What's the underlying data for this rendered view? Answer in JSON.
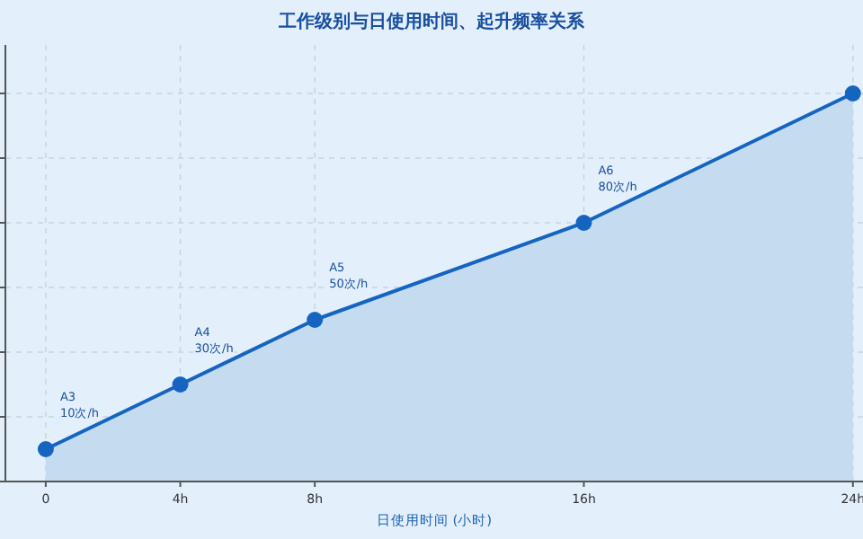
{
  "chart_data": {
    "type": "area",
    "title": "工作级别与日使用时间、起升频率关系",
    "xlabel": "日使用时间 (小时)",
    "x": [
      0,
      4,
      8,
      16,
      24
    ],
    "values": [
      10,
      30,
      50,
      80,
      120
    ],
    "value_labels": [
      "A3\n10次/h",
      "A4\n30次/h",
      "A5\n50次/h",
      "A6\n80次/h",
      null
    ],
    "color": "#1565c0",
    "xlim": [
      -1.2,
      24.3
    ],
    "xticks": [
      0,
      {
        "value": 4,
        "label": "4h"
      },
      {
        "value": 8,
        "label": "8h"
      },
      {
        "value": 16,
        "label": "16h"
      },
      {
        "value": 24,
        "label": "24h"
      }
    ],
    "ylim": [
      0,
      135
    ],
    "yticks": [
      {
        "value": 0,
        "label": null
      },
      {
        "value": 20,
        "label": null
      },
      {
        "value": 40,
        "label": null
      },
      {
        "value": 60,
        "label": null
      },
      {
        "value": 80,
        "label": null
      },
      {
        "value": 100,
        "label": null
      },
      {
        "value": 120,
        "label": null
      }
    ],
    "tick_labels": "x",
    "grid": true,
    "marker": "circle",
    "line_style": "solid"
  }
}
